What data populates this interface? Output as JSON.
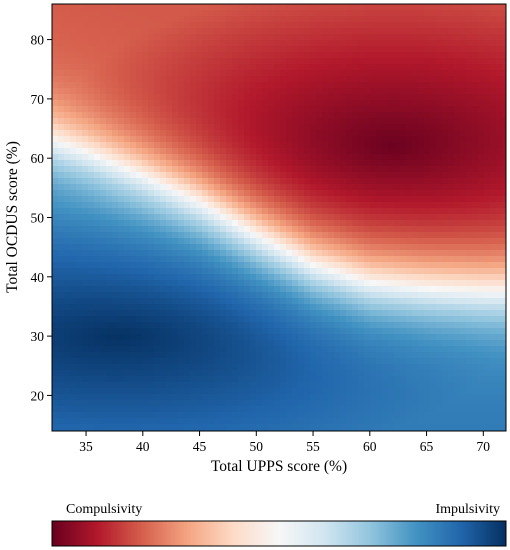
{
  "chart_data": {
    "type": "heatmap",
    "title": "",
    "xlabel": "Total UPPS score (%)",
    "ylabel": "Total OCDUS score (%)",
    "xlim": [
      32,
      72
    ],
    "ylim": [
      14,
      86
    ],
    "x_ticks": [
      35,
      40,
      45,
      50,
      55,
      60,
      65,
      70
    ],
    "y_ticks": [
      20,
      30,
      40,
      50,
      60,
      70,
      80
    ],
    "grid": false,
    "colormap": "RdBu",
    "colorbar": {
      "orientation": "horizontal",
      "placement": "bottom",
      "left_label": "Compulsivity",
      "right_label": "Impulsivity",
      "colors": [
        "#67001f",
        "#b2182b",
        "#d6604d",
        "#f4a582",
        "#fddbc7",
        "#f7f7f7",
        "#d1e5f0",
        "#92c5de",
        "#4393c3",
        "#2166ac",
        "#053061"
      ]
    },
    "decision_boundary": {
      "x": [
        32,
        35,
        40,
        45,
        50,
        55,
        60,
        65,
        70,
        72
      ],
      "y": [
        63,
        61,
        57,
        52.5,
        47,
        42,
        39,
        38,
        37.5,
        37.5
      ]
    },
    "peak_compulsivity": {
      "x": 62,
      "y": 62
    },
    "peak_impulsivity": {
      "x": 38,
      "y": 30
    }
  }
}
